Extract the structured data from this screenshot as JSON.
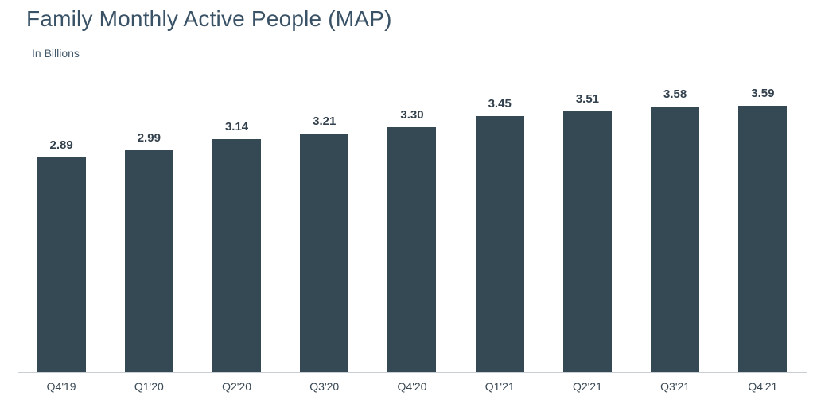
{
  "chart_data": {
    "type": "bar",
    "title": "Family Monthly Active People (MAP)",
    "subtitle": "In Billions",
    "categories": [
      "Q4'19",
      "Q1'20",
      "Q2'20",
      "Q3'20",
      "Q4'20",
      "Q1'21",
      "Q2'21",
      "Q3'21",
      "Q4'21"
    ],
    "values": [
      2.89,
      2.99,
      3.14,
      3.21,
      3.3,
      3.45,
      3.51,
      3.58,
      3.59
    ],
    "value_labels": [
      "2.89",
      "2.99",
      "3.14",
      "3.21",
      "3.30",
      "3.45",
      "3.51",
      "3.58",
      "3.59"
    ],
    "xlabel": "",
    "ylabel": "In Billions",
    "ylim": [
      0,
      4.05
    ],
    "grid": false,
    "legend": null,
    "layout": {
      "value_labels_position": "above-bars",
      "axis_line": "bottom-only"
    },
    "colors": {
      "bar": "#354954",
      "title": "#3a5266",
      "subtitle": "#44596a",
      "value_label": "#32414d",
      "tick_label": "#3a4954",
      "axis_line": "#c8ced4",
      "background": "#ffffff"
    }
  }
}
